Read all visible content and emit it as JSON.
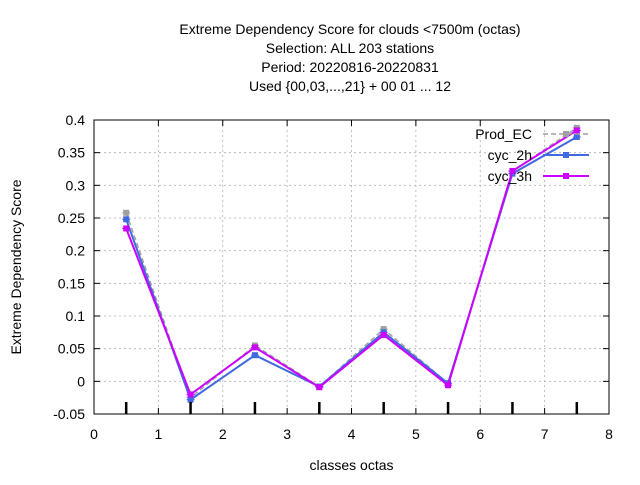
{
  "chart_data": {
    "type": "line",
    "title_lines": [
      "Extreme Dependency Score  for clouds <7500m (octas)",
      "Selection: ALL    203 stations",
      "Period: 20220816-20220831",
      "Used {00,03,...,21} + 00 01 ... 12"
    ],
    "xlabel": "classes octas",
    "ylabel": "Extreme Dependency Score",
    "xlim": [
      0,
      8
    ],
    "ylim": [
      -0.05,
      0.4
    ],
    "xticks": [
      0,
      1,
      2,
      3,
      4,
      5,
      6,
      7,
      8
    ],
    "yticks": [
      -0.05,
      0,
      0.05,
      0.1,
      0.15,
      0.2,
      0.25,
      0.3,
      0.35,
      0.4
    ],
    "ytick_labels": [
      "-0.05",
      "0",
      "0.05",
      "0.1",
      "0.15",
      "0.2",
      "0.25",
      "0.3",
      "0.35",
      "0.4"
    ],
    "grid": true,
    "legend_position": "top-right",
    "x": [
      0.5,
      1.5,
      2.5,
      3.5,
      4.5,
      5.5,
      6.5,
      7.5
    ],
    "series": [
      {
        "name": "Prod_EC",
        "color": "#a0a0a0",
        "dashed": true,
        "values": [
          0.258,
          -0.025,
          0.055,
          -0.008,
          0.08,
          -0.003,
          0.322,
          0.388
        ]
      },
      {
        "name": "cyc_2h",
        "color": "#4169e1",
        "dashed": false,
        "values": [
          0.248,
          -0.028,
          0.04,
          -0.008,
          0.075,
          -0.003,
          0.318,
          0.374
        ]
      },
      {
        "name": "cyc_3h",
        "color": "#cc00ff",
        "dashed": false,
        "values": [
          0.234,
          -0.02,
          0.052,
          -0.009,
          0.071,
          -0.006,
          0.322,
          0.384
        ]
      }
    ]
  }
}
